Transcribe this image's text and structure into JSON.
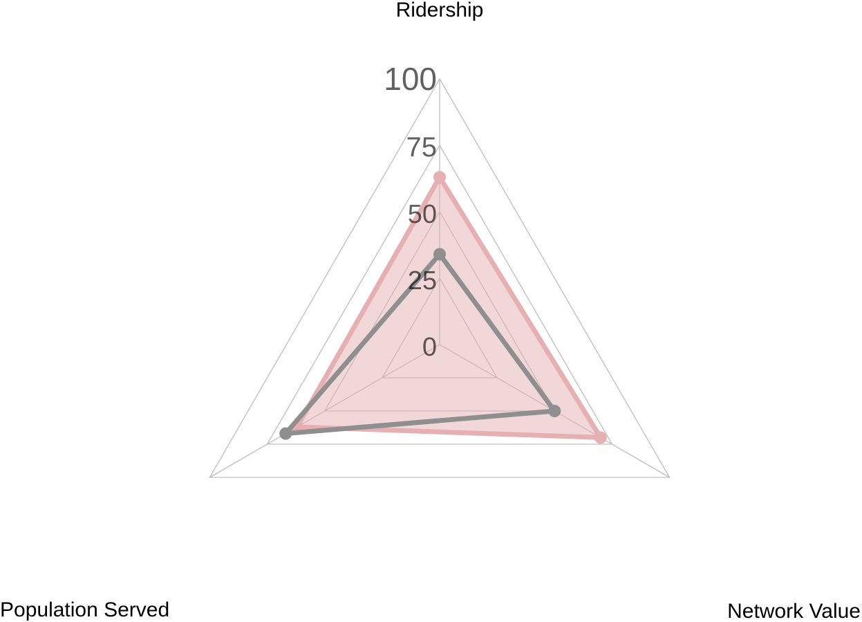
{
  "chart_data": {
    "type": "radar",
    "axes": [
      "Ridership",
      "Network Value",
      "Population Served"
    ],
    "ticks": [
      "0",
      "25",
      "50",
      "75",
      "100"
    ],
    "range": [
      0,
      100
    ],
    "grid": true,
    "series": [
      {
        "values": [
          63,
          70,
          62
        ],
        "color": "#e6b0b2",
        "fill": "#e6b0b2",
        "fill_opacity": 0.5
      },
      {
        "values": [
          34,
          50,
          67
        ],
        "color": "#8f8f8f",
        "fill": "none",
        "fill_opacity": 0
      }
    ]
  }
}
